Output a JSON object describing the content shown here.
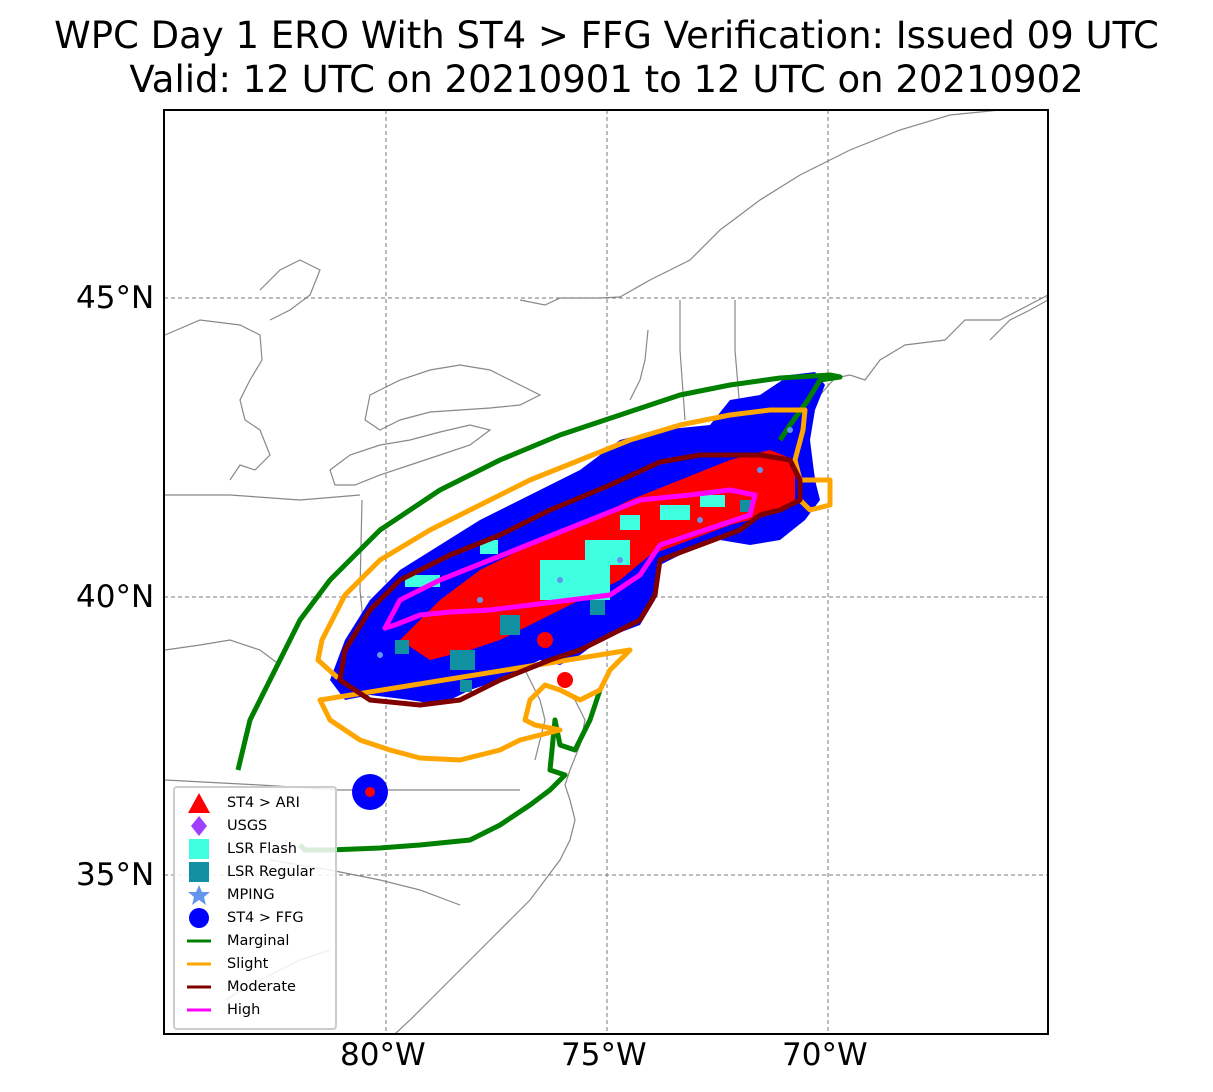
{
  "title": {
    "line1": "WPC Day 1 ERO With ST4 > FFG Verification: Issued 09 UTC",
    "line2": "Valid: 12 UTC on 20210901 to 12 UTC on 20210902"
  },
  "map": {
    "lat_labels": [
      "45°N",
      "40°N",
      "35°N"
    ],
    "lon_labels": [
      "80°W",
      "75°W",
      "70°W"
    ],
    "gridlines": "dashed gray",
    "outlook_colors": {
      "marginal": "#008000",
      "slight": "#ffa500",
      "moderate": "#800000",
      "high": "#ff00ff"
    }
  },
  "legend": {
    "items": [
      {
        "label": "ST4 > ARI",
        "symbol": "triangle",
        "color": "#ff0000"
      },
      {
        "label": "USGS",
        "symbol": "diamond",
        "color": "#a040ff"
      },
      {
        "label": "LSR Flash",
        "symbol": "square",
        "color": "#40ffe0"
      },
      {
        "label": "LSR Regular",
        "symbol": "square",
        "color": "#1090a0"
      },
      {
        "label": "MPING",
        "symbol": "star",
        "color": "#6495ed"
      },
      {
        "label": "ST4 > FFG",
        "symbol": "circle",
        "color": "#0000ff"
      },
      {
        "label": "Marginal",
        "symbol": "line",
        "color": "#008000"
      },
      {
        "label": "Slight",
        "symbol": "line",
        "color": "#ffa500"
      },
      {
        "label": "Moderate",
        "symbol": "line",
        "color": "#800000"
      },
      {
        "label": "High",
        "symbol": "line",
        "color": "#ff00ff"
      }
    ]
  }
}
